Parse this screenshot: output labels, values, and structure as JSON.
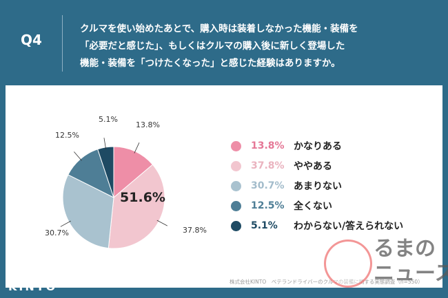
{
  "header": {
    "q": "Q4",
    "lines": [
      "クルマを使い始めたあとで、購入時は装着しなかった機能・装備を",
      "「必要だと感じた」、もしくはクルマの購入後に新しく登場した",
      "機能・装備を「つけたくなった」と感じた経験はありますか。"
    ]
  },
  "chart_data": {
    "type": "pie",
    "center_label": "51.6%",
    "labels": [
      "かなりある",
      "ややある",
      "あまりない",
      "全くない",
      "わからない/答えられない"
    ],
    "values": [
      13.8,
      37.8,
      30.7,
      12.5,
      5.1
    ],
    "value_labels": [
      "13.8%",
      "37.8%",
      "30.7%",
      "12.5%",
      "5.1%"
    ],
    "colors": [
      "#ee8ea7",
      "#f2c6cf",
      "#a9c2cf",
      "#4e7e96",
      "#1e4a63"
    ],
    "legend_text_colors": [
      "#e57796",
      "#eab3bf",
      "#a3bccb",
      "#4e7e96",
      "#1e4a63"
    ]
  },
  "footer": {
    "source": "株式会社KINTO　ベテランドライバーのクルマの装備に関する実態調査（n=550）",
    "logo": "KINTO"
  },
  "watermark": {
    "line1": "るまの",
    "line2": "ニュース"
  }
}
